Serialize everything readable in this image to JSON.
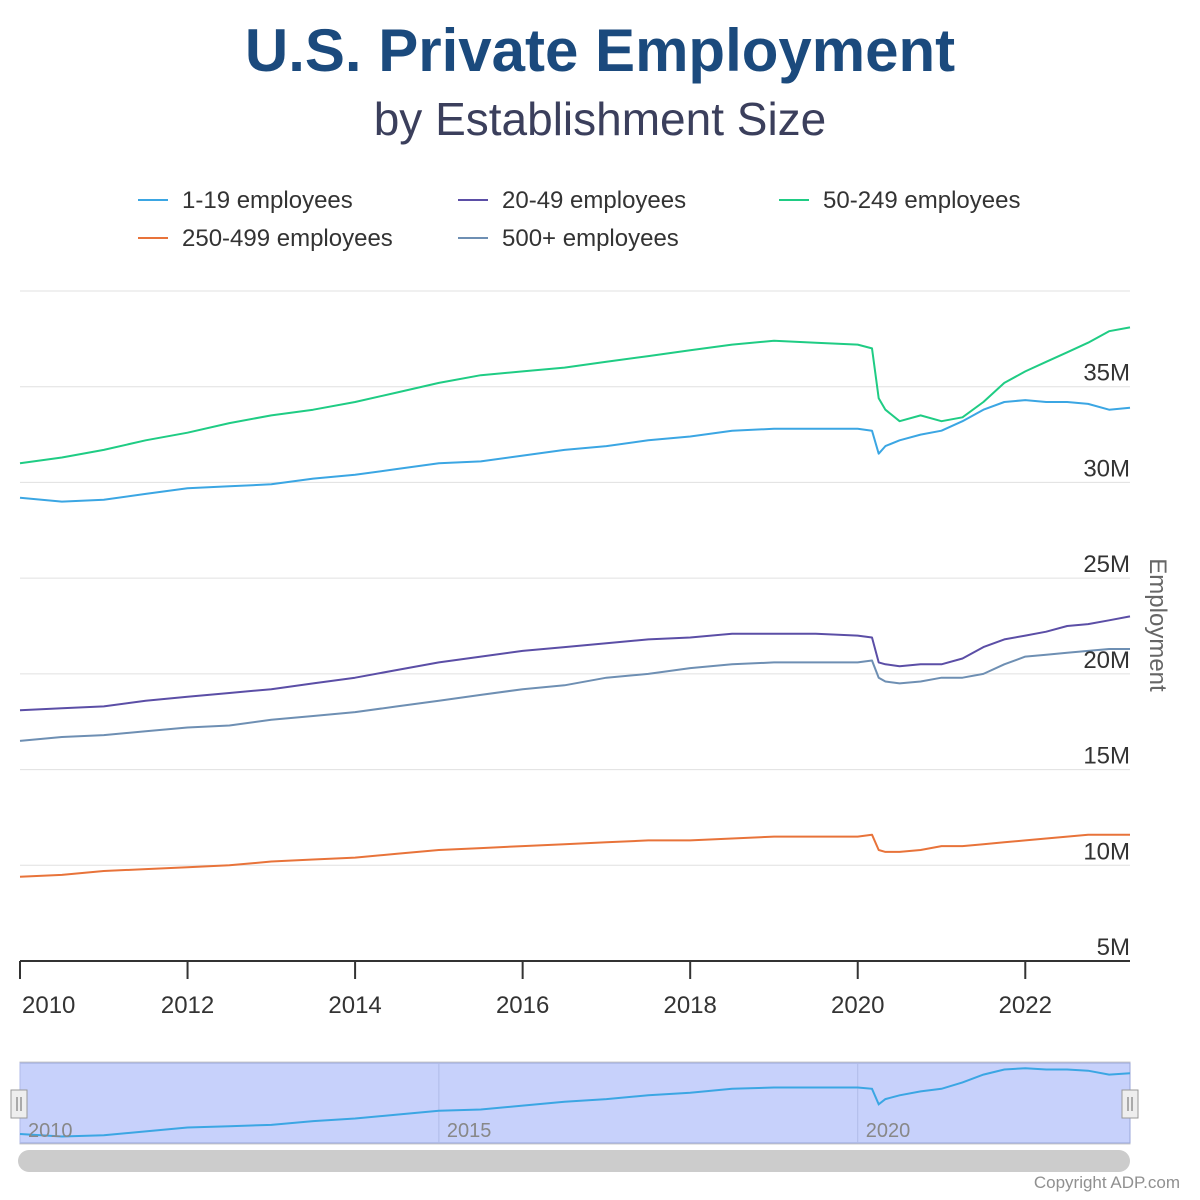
{
  "header": {
    "title": "U.S. Private Employment",
    "subtitle": "by Establishment Size"
  },
  "footer": {
    "copyright": "Copyright ADP.com"
  },
  "navigator": {
    "labels": [
      "2010",
      "2015",
      "2020"
    ]
  },
  "chart_data": {
    "type": "line",
    "title": "U.S. Private Employment",
    "subtitle": "by Establishment Size",
    "xlabel": "",
    "ylabel": "Employment",
    "xlim": [
      2010.0,
      2023.25
    ],
    "ylim": [
      5,
      40
    ],
    "x_ticks": [
      "2010",
      "2012",
      "2014",
      "2016",
      "2018",
      "2020",
      "2022"
    ],
    "y_ticks": [
      "5M",
      "10M",
      "15M",
      "20M",
      "25M",
      "30M",
      "35M"
    ],
    "grid": true,
    "legend_position": "top",
    "x": [
      2010.0,
      2010.5,
      2011.0,
      2011.5,
      2012.0,
      2012.5,
      2013.0,
      2013.5,
      2014.0,
      2014.5,
      2015.0,
      2015.5,
      2016.0,
      2016.5,
      2017.0,
      2017.5,
      2018.0,
      2018.5,
      2019.0,
      2019.5,
      2020.0,
      2020.17,
      2020.25,
      2020.33,
      2020.5,
      2020.75,
      2021.0,
      2021.25,
      2021.5,
      2021.75,
      2022.0,
      2022.25,
      2022.5,
      2022.75,
      2023.0,
      2023.25
    ],
    "series": [
      {
        "name": "1-19 employees",
        "color": "#3ba6e3",
        "values": [
          29.2,
          29.0,
          29.1,
          29.4,
          29.7,
          29.8,
          29.9,
          30.2,
          30.4,
          30.7,
          31.0,
          31.1,
          31.4,
          31.7,
          31.9,
          32.2,
          32.4,
          32.7,
          32.8,
          32.8,
          32.8,
          32.7,
          31.5,
          31.9,
          32.2,
          32.5,
          32.7,
          33.2,
          33.8,
          34.2,
          34.3,
          34.2,
          34.2,
          34.1,
          33.8,
          33.9
        ]
      },
      {
        "name": "20-49 employees",
        "color": "#5b4ea6",
        "values": [
          18.1,
          18.2,
          18.3,
          18.6,
          18.8,
          19.0,
          19.2,
          19.5,
          19.8,
          20.2,
          20.6,
          20.9,
          21.2,
          21.4,
          21.6,
          21.8,
          21.9,
          22.1,
          22.1,
          22.1,
          22.0,
          21.9,
          20.6,
          20.5,
          20.4,
          20.5,
          20.5,
          20.8,
          21.4,
          21.8,
          22.0,
          22.2,
          22.5,
          22.6,
          22.8,
          23.0
        ]
      },
      {
        "name": "50-249 employees",
        "color": "#1fcc84",
        "values": [
          31.0,
          31.3,
          31.7,
          32.2,
          32.6,
          33.1,
          33.5,
          33.8,
          34.2,
          34.7,
          35.2,
          35.6,
          35.8,
          36.0,
          36.3,
          36.6,
          36.9,
          37.2,
          37.4,
          37.3,
          37.2,
          37.0,
          34.4,
          33.8,
          33.2,
          33.5,
          33.2,
          33.4,
          34.2,
          35.2,
          35.8,
          36.3,
          36.8,
          37.3,
          37.9,
          38.1
        ]
      },
      {
        "name": "250-499 employees",
        "color": "#e8733a",
        "values": [
          9.4,
          9.5,
          9.7,
          9.8,
          9.9,
          10.0,
          10.2,
          10.3,
          10.4,
          10.6,
          10.8,
          10.9,
          11.0,
          11.1,
          11.2,
          11.3,
          11.3,
          11.4,
          11.5,
          11.5,
          11.5,
          11.6,
          10.8,
          10.7,
          10.7,
          10.8,
          11.0,
          11.0,
          11.1,
          11.2,
          11.3,
          11.4,
          11.5,
          11.6,
          11.6,
          11.6
        ]
      },
      {
        "name": "500+ employees",
        "color": "#6e8fb3",
        "values": [
          16.5,
          16.7,
          16.8,
          17.0,
          17.2,
          17.3,
          17.6,
          17.8,
          18.0,
          18.3,
          18.6,
          18.9,
          19.2,
          19.4,
          19.8,
          20.0,
          20.3,
          20.5,
          20.6,
          20.6,
          20.6,
          20.7,
          19.8,
          19.6,
          19.5,
          19.6,
          19.8,
          19.8,
          20.0,
          20.5,
          20.9,
          21.0,
          21.1,
          21.2,
          21.3,
          21.3
        ]
      }
    ]
  }
}
